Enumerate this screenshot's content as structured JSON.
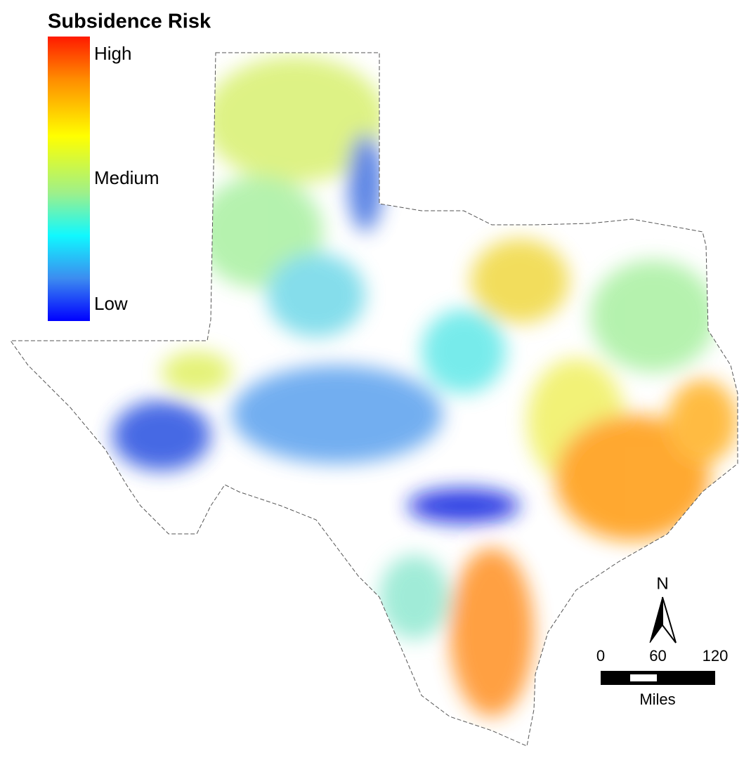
{
  "legend": {
    "title": "Subsidence Risk",
    "labels": [
      "High",
      "Medium",
      "Low"
    ]
  },
  "north_arrow": "N",
  "scale_bar": {
    "ticks": [
      0,
      60,
      120
    ],
    "unit": "Miles"
  }
}
